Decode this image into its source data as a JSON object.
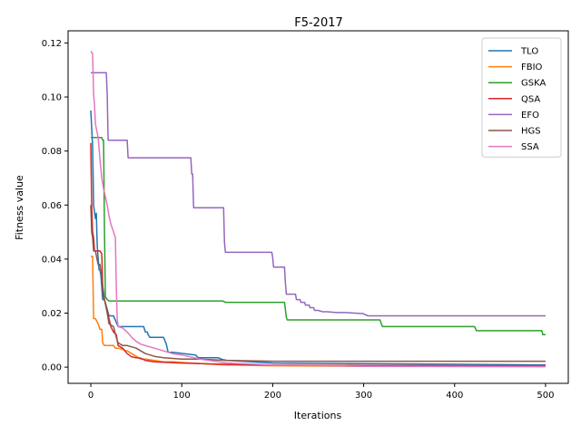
{
  "chart_data": {
    "type": "line",
    "title": "F5-2017",
    "xlabel": "Iterations",
    "ylabel": "Fitness value",
    "xlim": [
      -25,
      525
    ],
    "ylim": [
      -0.006,
      0.1245
    ],
    "xticks": [
      0,
      100,
      200,
      300,
      400,
      500
    ],
    "yticks": [
      0.0,
      0.02,
      0.04,
      0.06,
      0.08,
      0.1,
      0.12
    ],
    "ytick_labels": [
      "0.00",
      "0.02",
      "0.04",
      "0.06",
      "0.08",
      "0.10",
      "0.12"
    ],
    "grid": false,
    "legend_position": "top-right",
    "series": [
      {
        "name": "TLO",
        "color": "#1f77b4",
        "x": [
          0,
          2,
          3,
          5,
          6,
          7,
          9,
          10,
          11,
          13,
          15,
          20,
          21,
          25,
          30,
          58,
          60,
          62,
          63,
          65,
          80,
          83,
          85,
          90,
          115,
          118,
          120,
          140,
          145,
          150,
          200,
          500
        ],
        "y": [
          0.095,
          0.082,
          0.06,
          0.055,
          0.057,
          0.045,
          0.036,
          0.036,
          0.034,
          0.025,
          0.025,
          0.019,
          0.019,
          0.019,
          0.015,
          0.015,
          0.013,
          0.013,
          0.012,
          0.011,
          0.011,
          0.0085,
          0.0055,
          0.0055,
          0.0045,
          0.0035,
          0.0035,
          0.0035,
          0.0028,
          0.0025,
          0.0015,
          0.0008
        ]
      },
      {
        "name": "FBIO",
        "color": "#ff7f0e",
        "x": [
          0,
          2,
          3,
          4,
          5,
          8,
          10,
          12,
          13,
          15,
          20,
          25,
          27,
          30,
          40,
          45,
          50,
          55,
          60,
          70,
          80,
          90,
          110,
          150,
          200,
          300,
          500
        ],
        "y": [
          0.041,
          0.041,
          0.018,
          0.018,
          0.018,
          0.016,
          0.014,
          0.014,
          0.009,
          0.008,
          0.008,
          0.008,
          0.007,
          0.007,
          0.006,
          0.005,
          0.004,
          0.003,
          0.003,
          0.0025,
          0.002,
          0.002,
          0.0015,
          0.0008,
          0.0005,
          0.0003,
          0.0002
        ]
      },
      {
        "name": "GSKA",
        "color": "#2ca02c",
        "x": [
          0,
          12,
          13,
          14,
          15,
          16,
          18,
          20,
          140,
          145,
          148,
          200,
          213,
          215,
          216,
          300,
          318,
          320,
          321,
          400,
          422,
          424,
          425,
          496,
          497,
          500
        ],
        "y": [
          0.085,
          0.085,
          0.084,
          0.084,
          0.05,
          0.026,
          0.025,
          0.0245,
          0.0245,
          0.0245,
          0.024,
          0.024,
          0.024,
          0.0185,
          0.0175,
          0.0175,
          0.0175,
          0.0155,
          0.015,
          0.015,
          0.015,
          0.0135,
          0.0135,
          0.0135,
          0.012,
          0.012
        ]
      },
      {
        "name": "QSA",
        "color": "#d62728",
        "x": [
          0,
          1,
          2,
          3,
          4,
          5,
          10,
          12,
          13,
          14,
          15,
          17,
          20,
          22,
          25,
          28,
          30,
          35,
          40,
          45,
          50,
          55,
          60,
          70,
          80,
          100,
          130,
          150,
          200,
          300,
          500
        ],
        "y": [
          0.083,
          0.06,
          0.05,
          0.048,
          0.043,
          0.043,
          0.043,
          0.042,
          0.03,
          0.026,
          0.025,
          0.022,
          0.018,
          0.015,
          0.013,
          0.012,
          0.008,
          0.007,
          0.005,
          0.0038,
          0.0035,
          0.0033,
          0.0025,
          0.002,
          0.0018,
          0.0015,
          0.0012,
          0.001,
          0.0008,
          0.0006,
          0.0005
        ]
      },
      {
        "name": "EFO",
        "color": "#9467bd",
        "x": [
          0,
          17,
          18,
          19,
          40,
          41,
          110,
          111,
          112,
          113,
          146,
          147,
          148,
          199,
          200,
          201,
          213,
          214,
          215,
          225,
          226,
          230,
          231,
          235,
          236,
          240,
          241,
          245,
          246,
          250,
          255,
          260,
          270,
          280,
          300,
          301,
          305,
          310,
          500
        ],
        "y": [
          0.109,
          0.109,
          0.101,
          0.084,
          0.084,
          0.0775,
          0.0775,
          0.0715,
          0.0715,
          0.059,
          0.059,
          0.046,
          0.0425,
          0.0425,
          0.0405,
          0.037,
          0.037,
          0.031,
          0.027,
          0.027,
          0.025,
          0.025,
          0.024,
          0.024,
          0.023,
          0.023,
          0.022,
          0.022,
          0.021,
          0.021,
          0.0205,
          0.0205,
          0.0202,
          0.0202,
          0.0198,
          0.0195,
          0.019,
          0.019,
          0.019
        ]
      },
      {
        "name": "HGS",
        "color": "#8c564b",
        "x": [
          0,
          1,
          2,
          3,
          5,
          8,
          10,
          12,
          15,
          18,
          20,
          25,
          28,
          30,
          35,
          40,
          50,
          55,
          60,
          65,
          70,
          80,
          100,
          120,
          150,
          200,
          300,
          500
        ],
        "y": [
          0.06,
          0.05,
          0.048,
          0.043,
          0.043,
          0.038,
          0.038,
          0.033,
          0.025,
          0.02,
          0.016,
          0.015,
          0.011,
          0.009,
          0.008,
          0.008,
          0.007,
          0.006,
          0.005,
          0.0045,
          0.004,
          0.0035,
          0.003,
          0.003,
          0.0025,
          0.0022,
          0.0022,
          0.0022
        ]
      },
      {
        "name": "SSA",
        "color": "#e377c2",
        "x": [
          0,
          2,
          3,
          4,
          5,
          8,
          10,
          12,
          14,
          16,
          18,
          20,
          22,
          25,
          27,
          28,
          29,
          30,
          35,
          40,
          45,
          50,
          55,
          60,
          65,
          70,
          80,
          90,
          100,
          120,
          150,
          200,
          300,
          500
        ],
        "y": [
          0.117,
          0.116,
          0.101,
          0.097,
          0.09,
          0.085,
          0.077,
          0.07,
          0.066,
          0.063,
          0.06,
          0.056,
          0.053,
          0.05,
          0.048,
          0.03,
          0.018,
          0.015,
          0.0145,
          0.013,
          0.011,
          0.0095,
          0.0085,
          0.008,
          0.0075,
          0.007,
          0.006,
          0.005,
          0.0045,
          0.003,
          0.0015,
          0.0008,
          0.0003,
          0.0002
        ]
      }
    ]
  }
}
